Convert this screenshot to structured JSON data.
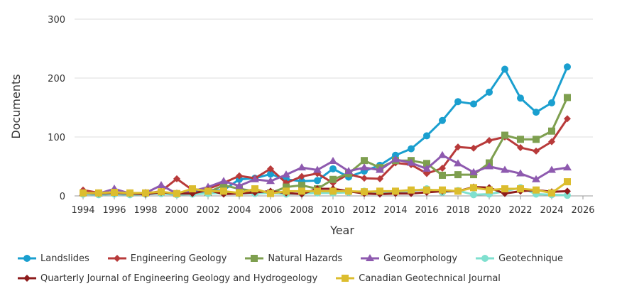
{
  "chart_data": {
    "type": "line",
    "xlabel": "Year",
    "ylabel": "Documents",
    "xlim": [
      1994,
      2026
    ],
    "ylim": [
      0,
      300
    ],
    "x_ticks": [
      "1994",
      "1996",
      "1998",
      "2000",
      "2002",
      "2004",
      "2006",
      "2008",
      "2010",
      "2012",
      "2014",
      "2016",
      "2018",
      "2020",
      "2022",
      "2024",
      "2026"
    ],
    "y_ticks": [
      "0",
      "100",
      "200",
      "300"
    ],
    "grid": "horizontal",
    "legend_position": "bottom",
    "x": [
      1994,
      1995,
      1996,
      1997,
      1998,
      1999,
      2000,
      2001,
      2002,
      2003,
      2004,
      2005,
      2006,
      2007,
      2008,
      2009,
      2010,
      2011,
      2012,
      2013,
      2014,
      2015,
      2016,
      2017,
      2018,
      2019,
      2020,
      2021,
      2022,
      2023,
      2024,
      2025
    ],
    "series": [
      {
        "name": "Landslides",
        "color": "#1a9fcf",
        "marker": "circle",
        "values": [
          3,
          3,
          5,
          3,
          3,
          4,
          3,
          6,
          8,
          10,
          28,
          30,
          37,
          28,
          25,
          26,
          46,
          32,
          42,
          52,
          69,
          80,
          102,
          128,
          160,
          156,
          176,
          215,
          166,
          142,
          158,
          219
        ]
      },
      {
        "name": "Engineering Geology",
        "color": "#b83a3a",
        "marker": "diamond",
        "values": [
          10,
          5,
          5,
          3,
          4,
          8,
          29,
          10,
          12,
          22,
          34,
          30,
          46,
          22,
          33,
          38,
          22,
          37,
          30,
          29,
          56,
          53,
          38,
          47,
          83,
          81,
          94,
          100,
          82,
          76,
          92,
          131
        ]
      },
      {
        "name": "Natural Hazards",
        "color": "#7e9f4f",
        "marker": "square",
        "values": [
          null,
          null,
          null,
          null,
          null,
          null,
          null,
          null,
          6,
          18,
          12,
          8,
          5,
          15,
          18,
          12,
          28,
          38,
          60,
          48,
          60,
          60,
          55,
          35,
          36,
          36,
          56,
          103,
          96,
          96,
          110,
          167
        ]
      },
      {
        "name": "Geomorphology",
        "color": "#8e5aaf",
        "marker": "triangle",
        "values": [
          5,
          4,
          12,
          4,
          5,
          18,
          4,
          8,
          15,
          25,
          17,
          28,
          25,
          36,
          48,
          44,
          59,
          42,
          48,
          44,
          62,
          56,
          46,
          69,
          55,
          40,
          50,
          44,
          38,
          28,
          44,
          48
        ]
      },
      {
        "name": "Geotechnique",
        "color": "#7fe0cf",
        "marker": "circle",
        "values": [
          3,
          2,
          3,
          2,
          3,
          4,
          2,
          3,
          4,
          5,
          4,
          4,
          5,
          3,
          4,
          5,
          5,
          6,
          8,
          6,
          7,
          8,
          12,
          6,
          9,
          2,
          3,
          8,
          14,
          3,
          2,
          1
        ]
      },
      {
        "name": "Quarterly Journal of Engineering Geology and Hydrogeology",
        "color": "#8e1b1b",
        "marker": "diamond",
        "values": [
          5,
          4,
          5,
          4,
          3,
          6,
          4,
          4,
          10,
          3,
          4,
          6,
          8,
          5,
          3,
          12,
          12,
          8,
          4,
          3,
          4,
          4,
          6,
          8,
          8,
          15,
          14,
          4,
          8,
          10,
          7,
          8
        ]
      },
      {
        "name": "Canadian Geotechnical Journal",
        "color": "#dcbd2e",
        "marker": "square",
        "values": [
          5,
          5,
          6,
          5,
          5,
          7,
          4,
          12,
          8,
          8,
          5,
          12,
          4,
          8,
          8,
          8,
          8,
          8,
          7,
          8,
          8,
          10,
          10,
          10,
          8,
          14,
          10,
          12,
          12,
          10,
          5,
          24
        ]
      }
    ]
  }
}
